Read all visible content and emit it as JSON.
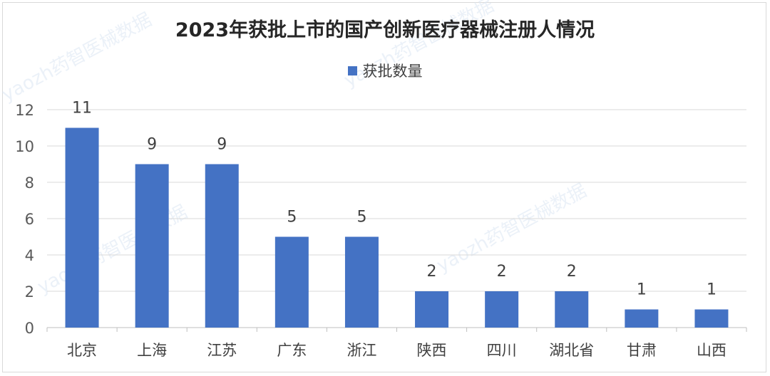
{
  "chart_data": {
    "type": "bar",
    "title": "2023年获批上市的国产创新医疗器械注册人情况",
    "categories": [
      "北京",
      "上海",
      "江苏",
      "广东",
      "浙江",
      "陕西",
      "四川",
      "湖北省",
      "甘肃",
      "山西"
    ],
    "series": [
      {
        "name": "获批数量",
        "values": [
          11,
          9,
          9,
          5,
          5,
          2,
          2,
          2,
          1,
          1
        ]
      }
    ],
    "xlabel": "",
    "ylabel": "",
    "ylim": [
      0,
      12
    ],
    "yticks": [
      0,
      2,
      4,
      6,
      8,
      10,
      12
    ],
    "grid": true,
    "legend_position": "top",
    "data_labels": true,
    "bar_color": "#4472c4"
  },
  "watermark": "yaozh药智医械数据"
}
